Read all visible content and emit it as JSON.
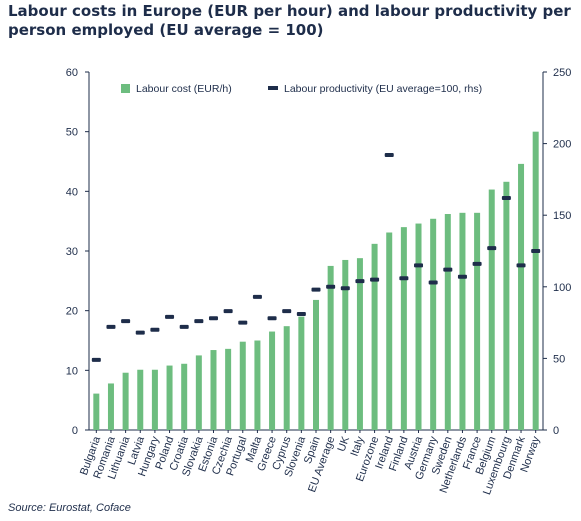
{
  "title": "Labour costs in Europe (EUR per hour) and labour productivity per person employed (EU average = 100)",
  "source": "Source: Eurostat, Coface",
  "colors": {
    "bar": "#6dbd7f",
    "marker": "#1e2d4a",
    "axis": "#1e2d4a"
  },
  "chart_data": {
    "type": "bar",
    "categories": [
      "Bulgaria",
      "Romania",
      "Lithuania",
      "Latvia",
      "Hungary",
      "Poland",
      "Croatia",
      "Slovakia",
      "Estonia",
      "Czechia",
      "Portugal",
      "Malta",
      "Greece",
      "Cyprus",
      "Slovenia",
      "Spain",
      "EU Average",
      "UK",
      "Italy",
      "Eurozone",
      "Ireland",
      "Finland",
      "Austria",
      "Germany",
      "Sweden",
      "Netherlands",
      "France",
      "Belgium",
      "Luxembourg",
      "Denmark",
      "Norway"
    ],
    "series": [
      {
        "name": "Labour cost (EUR/h)",
        "kind": "bar",
        "axis": "left",
        "values": [
          6.1,
          7.8,
          9.6,
          10.1,
          10.1,
          10.8,
          11.1,
          12.5,
          13.4,
          13.6,
          14.8,
          15.0,
          16.5,
          17.4,
          19.0,
          21.8,
          27.5,
          28.5,
          28.8,
          31.2,
          33.1,
          34.0,
          34.6,
          35.4,
          36.2,
          36.4,
          36.4,
          40.3,
          41.6,
          44.6,
          50.0
        ]
      },
      {
        "name": "Labour productivity (EU average=100, rhs)",
        "kind": "marker",
        "axis": "right",
        "values": [
          49,
          72,
          76,
          68,
          70,
          79,
          72,
          76,
          78,
          83,
          75,
          93,
          78,
          83,
          81,
          98,
          100,
          99,
          104,
          105,
          192,
          106,
          115,
          103,
          112,
          107,
          116,
          127,
          162,
          115,
          125
        ]
      }
    ],
    "left_axis": {
      "min": 0,
      "max": 60,
      "ticks": [
        0,
        10,
        20,
        30,
        40,
        50,
        60
      ]
    },
    "right_axis": {
      "min": 0,
      "max": 250,
      "ticks": [
        0,
        50,
        100,
        150,
        200,
        250
      ]
    },
    "legend_placement": "top",
    "grid": false
  }
}
